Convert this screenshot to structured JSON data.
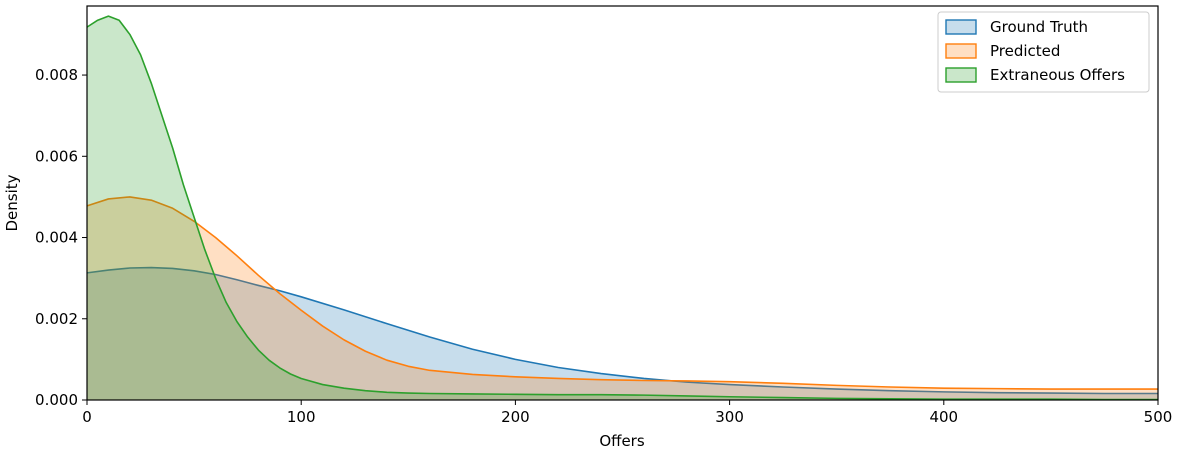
{
  "chart_data": {
    "type": "area",
    "xlabel": "Offers",
    "ylabel": "Density",
    "xlim": [
      0,
      500
    ],
    "ylim": [
      0,
      0.0097
    ],
    "x_ticks": [
      0,
      100,
      200,
      300,
      400,
      500
    ],
    "x_tick_labels": [
      "0",
      "100",
      "200",
      "300",
      "400",
      "500"
    ],
    "y_ticks": [
      0,
      0.002,
      0.004,
      0.006,
      0.008
    ],
    "y_tick_labels": [
      "0.000",
      "0.002",
      "0.004",
      "0.006",
      "0.008"
    ],
    "grid": false,
    "legend_position": "top-right",
    "series": [
      {
        "name": "Ground Truth",
        "color": "#1f77b4",
        "x": [
          0,
          10,
          20,
          30,
          40,
          50,
          60,
          70,
          80,
          90,
          100,
          120,
          140,
          160,
          180,
          200,
          220,
          240,
          260,
          280,
          300,
          325,
          350,
          375,
          400,
          425,
          450,
          475,
          500
        ],
        "y": [
          0.00313,
          0.0032,
          0.00325,
          0.00326,
          0.00324,
          0.00318,
          0.00309,
          0.00296,
          0.00282,
          0.00269,
          0.00254,
          0.00222,
          0.00188,
          0.00155,
          0.00125,
          0.001,
          0.0008,
          0.00065,
          0.00053,
          0.00044,
          0.00038,
          0.00032,
          0.00027,
          0.00023,
          0.0002,
          0.00018,
          0.00017,
          0.00016,
          0.00016
        ]
      },
      {
        "name": "Predicted",
        "color": "#ff7f0e",
        "x": [
          0,
          10,
          20,
          30,
          40,
          50,
          60,
          70,
          80,
          90,
          100,
          110,
          120,
          130,
          140,
          150,
          160,
          180,
          200,
          220,
          240,
          260,
          280,
          300,
          325,
          350,
          375,
          400,
          425,
          450,
          475,
          500
        ],
        "y": [
          0.00478,
          0.00495,
          0.005,
          0.00492,
          0.00472,
          0.0044,
          0.004,
          0.00355,
          0.00307,
          0.00262,
          0.00221,
          0.00182,
          0.00148,
          0.0012,
          0.00098,
          0.00083,
          0.00073,
          0.00063,
          0.00057,
          0.00053,
          0.0005,
          0.00048,
          0.00047,
          0.00045,
          0.00041,
          0.00036,
          0.00032,
          0.00029,
          0.00028,
          0.00027,
          0.00027,
          0.00027
        ]
      },
      {
        "name": "Extraneous Offers",
        "color": "#2ca02c",
        "x": [
          0,
          5,
          10,
          15,
          20,
          25,
          30,
          35,
          40,
          45,
          50,
          55,
          60,
          65,
          70,
          75,
          80,
          85,
          90,
          95,
          100,
          110,
          120,
          130,
          140,
          150,
          160,
          180,
          200,
          220,
          240,
          260,
          280,
          300,
          325,
          350,
          375,
          400,
          425,
          450,
          475,
          500
        ],
        "y": [
          0.00918,
          0.00935,
          0.00945,
          0.00935,
          0.009,
          0.0085,
          0.0078,
          0.007,
          0.0062,
          0.0053,
          0.0045,
          0.0037,
          0.003,
          0.0024,
          0.00193,
          0.00155,
          0.00123,
          0.00098,
          0.00079,
          0.00064,
          0.00053,
          0.00038,
          0.00029,
          0.00023,
          0.00019,
          0.00017,
          0.00016,
          0.00015,
          0.00014,
          0.00013,
          0.00013,
          0.00012,
          0.0001,
          8e-05,
          6e-05,
          4e-05,
          3e-05,
          2e-05,
          2e-05,
          2e-05,
          1e-05,
          1e-05
        ]
      }
    ]
  }
}
